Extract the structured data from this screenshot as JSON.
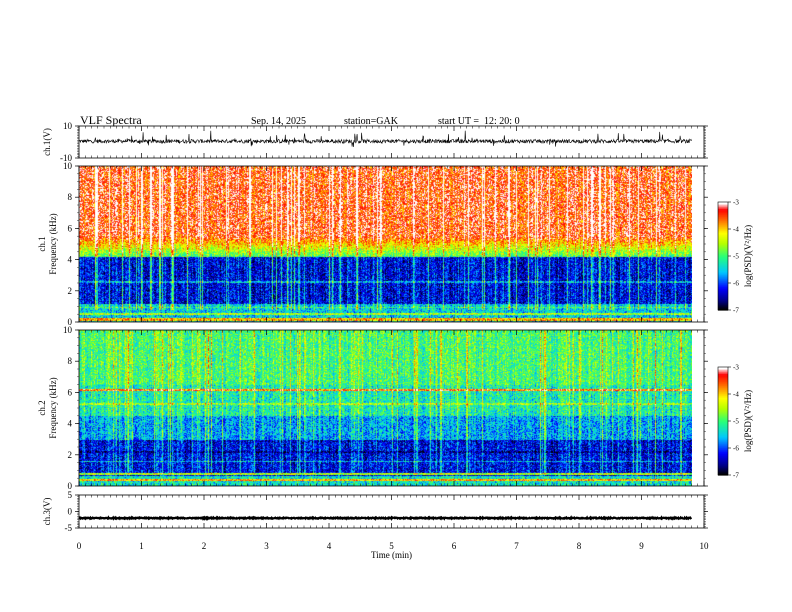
{
  "header": {
    "title": "VLF Spectra",
    "date": "Sep. 14, 2025",
    "station": "station=GAK",
    "start": "start UT =  12: 20: 0"
  },
  "chart_data": [
    {
      "type": "line",
      "ylabel": "ch.1(V)",
      "ylim": [
        -10,
        10
      ],
      "yticks": [
        "10",
        "-10"
      ],
      "baseline": 0.5,
      "noise_level": 1.2
    },
    {
      "type": "heatmap",
      "ylabel_ch": "ch.1",
      "ylabel": "Frequency (kHz)",
      "ylim": [
        0,
        10
      ],
      "yticks": [
        "0",
        "2",
        "4",
        "6",
        "8",
        "10"
      ],
      "colorbar": {
        "label": "log(PSD)(V²/Hz)",
        "range": [
          -7,
          -3
        ],
        "ticks": [
          "-3",
          "-4",
          "-5",
          "-6",
          "-7"
        ]
      }
    },
    {
      "type": "heatmap",
      "ylabel_ch": "ch.2",
      "ylabel": "Frequency (kHz)",
      "ylim": [
        0,
        10
      ],
      "yticks": [
        "0",
        "2",
        "4",
        "6",
        "8",
        "10"
      ],
      "colorbar": {
        "label": "log(PSD)(V²/Hz)",
        "range": [
          -7,
          -3
        ],
        "ticks": [
          "-3",
          "-4",
          "-5",
          "-6",
          "-7"
        ]
      }
    },
    {
      "type": "line",
      "ylabel": "ch.3(V)",
      "ylim": [
        -5,
        5
      ],
      "yticks": [
        "5",
        "0",
        "-5"
      ],
      "baseline": -2,
      "noise_level": 0.15
    }
  ],
  "xaxis": {
    "label": "Time (min)",
    "xlim": [
      0,
      10
    ],
    "ticks": [
      "0",
      "1",
      "2",
      "3",
      "4",
      "5",
      "6",
      "7",
      "8",
      "9",
      "10"
    ],
    "data_end": 9.8
  }
}
